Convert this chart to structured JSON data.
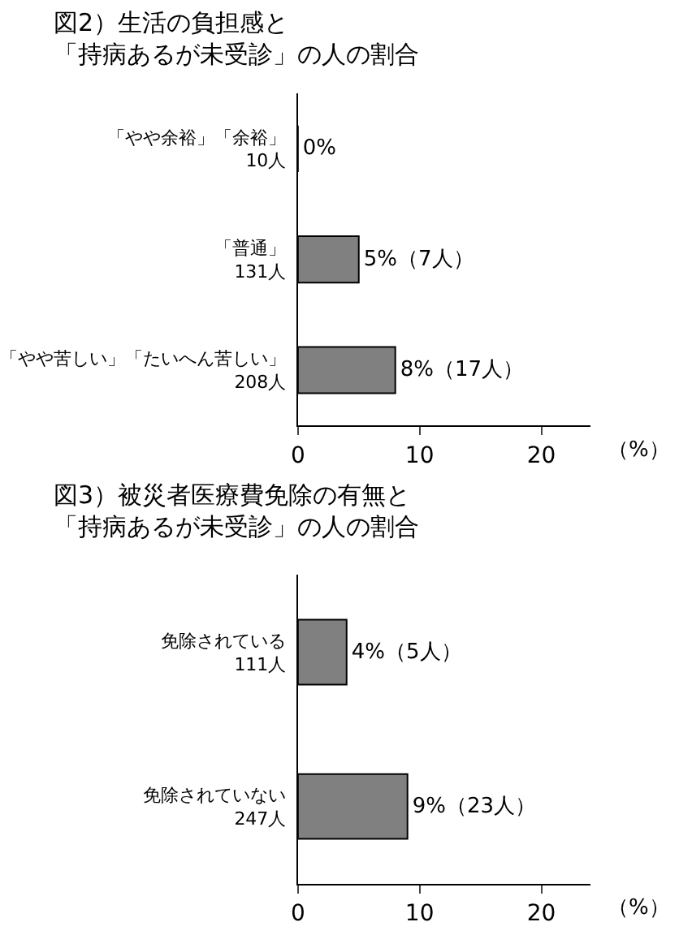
{
  "chart_data": [
    {
      "type": "bar",
      "orientation": "horizontal",
      "title": "図2）生活の負担感と「持病あるが未受診」の人の割合",
      "categories": [
        "「やや余裕」「余裕」\n10人",
        "「普通」\n131人",
        "「やや苦しい」「たいへん苦しい」\n208人"
      ],
      "values": [
        0,
        5,
        8
      ],
      "value_labels": [
        "0%",
        "5%（7人）",
        "8%（17人）"
      ],
      "color": "#808080",
      "xlim": [
        0,
        24
      ],
      "xticks": [
        0,
        10,
        20
      ],
      "xlabel": "（%）"
    },
    {
      "type": "bar",
      "orientation": "horizontal",
      "title": "図3）被災者医療費免除の有無と「持病あるが未受診」の人の割合",
      "categories": [
        "免除されている\n111人",
        "免除されていない\n247人"
      ],
      "values": [
        4,
        9
      ],
      "value_labels": [
        "4%（5人）",
        "9%（23人）"
      ],
      "color": "#808080",
      "xlim": [
        0,
        24
      ],
      "xticks": [
        0,
        10,
        20
      ],
      "xlabel": "（%）"
    }
  ]
}
